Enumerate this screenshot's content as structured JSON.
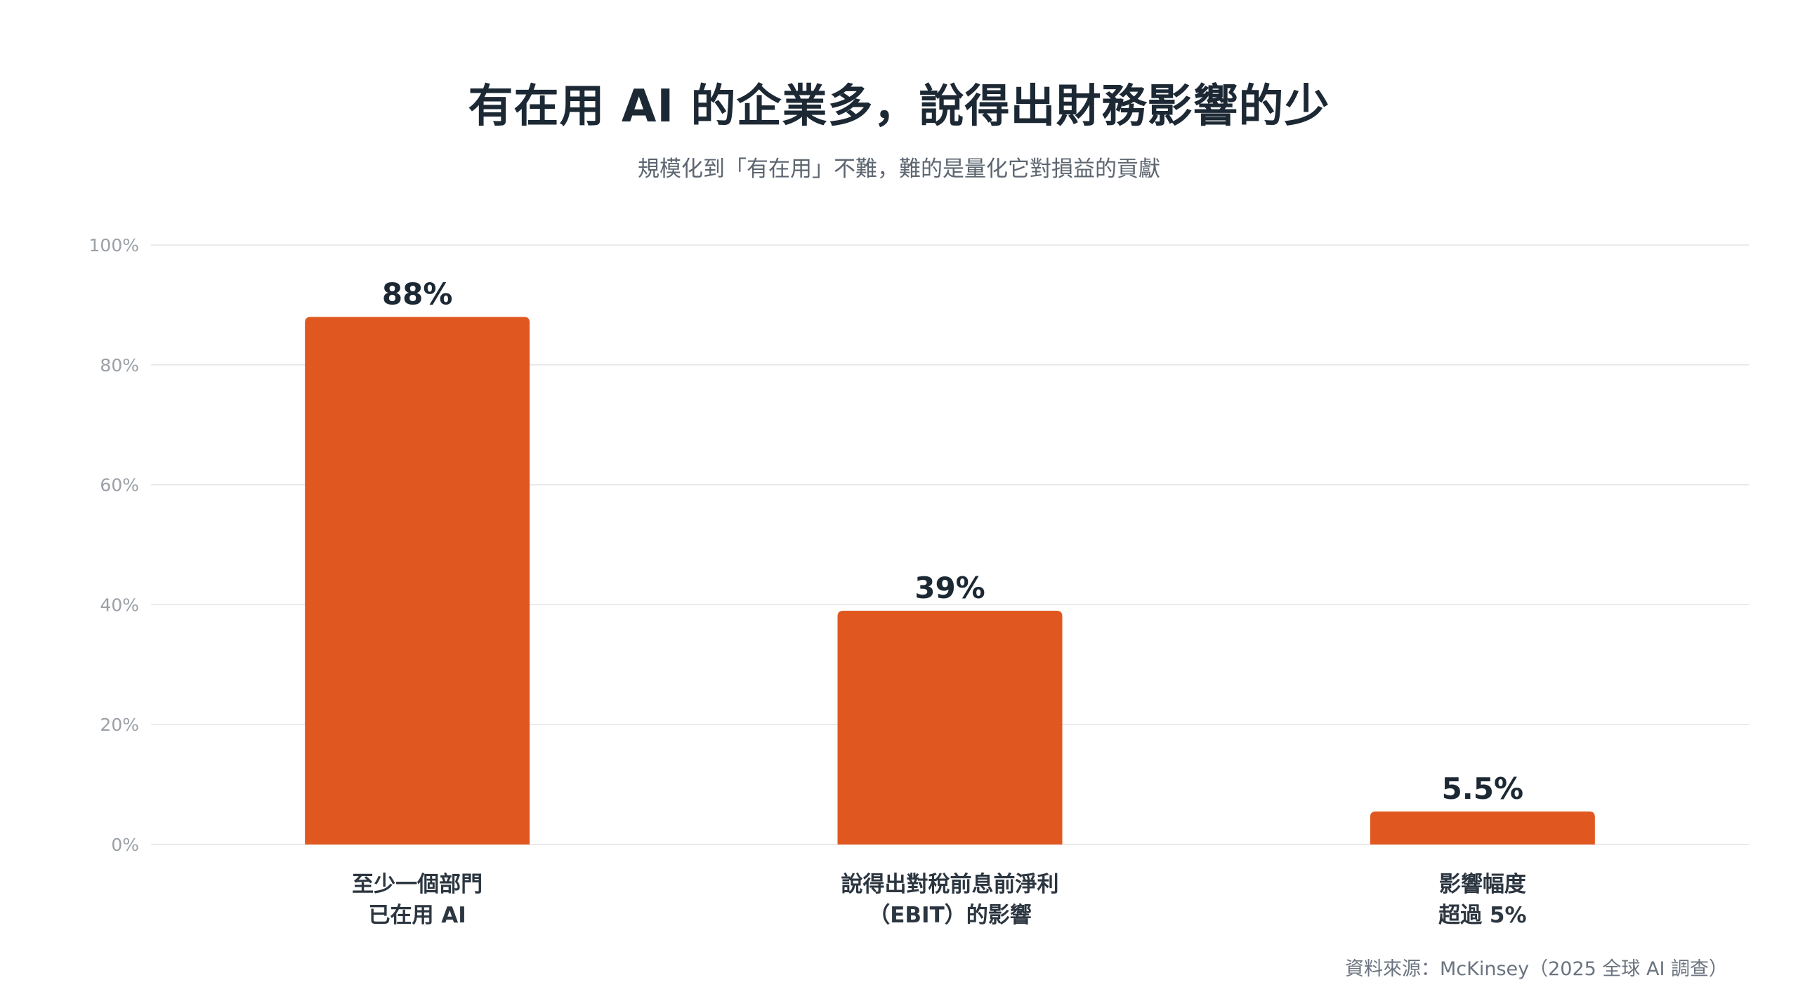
{
  "title": "有在用 AI 的企業多，說得出財務影響的少",
  "subtitle": "規模化到「有在用」不難，難的是量化它對損益的貢獻",
  "source": "資料來源：McKinsey（2025 全球 AI 調查）",
  "colors": {
    "bar": "#e0581f",
    "grid": "#e4e4e4",
    "tick": "#9aa0a6",
    "value_label": "#1c2833",
    "category_label": "#2c3640"
  },
  "chart_data": {
    "type": "bar",
    "categories": [
      [
        "至少一個部門",
        "已在用 AI"
      ],
      [
        "說得出對稅前息前淨利",
        "（EBIT）的影響"
      ],
      [
        "影響幅度",
        "超過 5%"
      ]
    ],
    "values": [
      88,
      39,
      5.5
    ],
    "value_labels": [
      "88%",
      "39%",
      "5.5%"
    ],
    "yticks": [
      0,
      20,
      40,
      60,
      80,
      100
    ],
    "ytick_labels": [
      "0%",
      "20%",
      "40%",
      "60%",
      "80%",
      "100%"
    ],
    "ylim": [
      0,
      100
    ],
    "grid": true,
    "xlabel": "",
    "ylabel": ""
  }
}
